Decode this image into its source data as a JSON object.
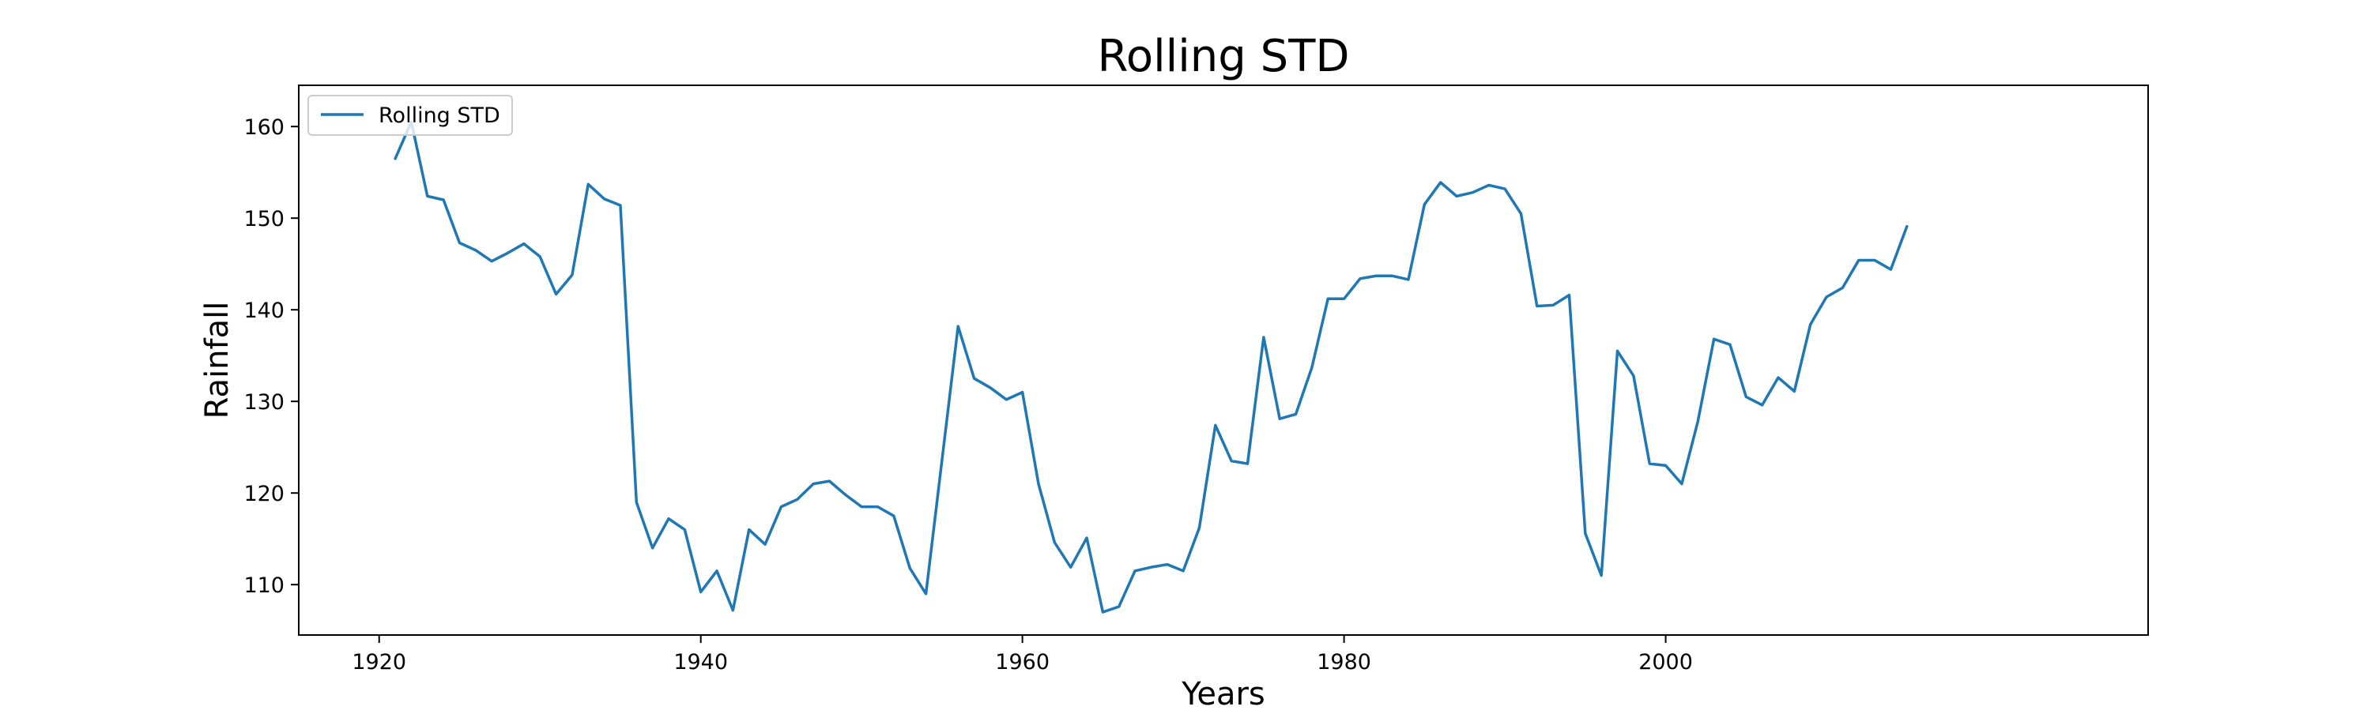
{
  "chart_data": {
    "type": "line",
    "title": "Rolling STD",
    "xlabel": "Years",
    "ylabel": "Rainfall",
    "xlim": [
      1915,
      2030
    ],
    "ylim": [
      104.5,
      164.5
    ],
    "xticks": [
      1920,
      1940,
      1960,
      1980,
      2000
    ],
    "yticks": [
      110,
      120,
      130,
      140,
      150,
      160
    ],
    "grid": false,
    "legend_position": "top-left",
    "series": [
      {
        "name": "Rolling STD",
        "color": "#1f77b4",
        "x": [
          1921,
          1922,
          1923,
          1924,
          1925,
          1926,
          1927,
          1928,
          1929,
          1930,
          1931,
          1932,
          1933,
          1934,
          1935,
          1936,
          1937,
          1938,
          1939,
          1940,
          1941,
          1942,
          1943,
          1944,
          1945,
          1946,
          1947,
          1948,
          1949,
          1950,
          1951,
          1952,
          1953,
          1954,
          1955,
          1956,
          1957,
          1958,
          1959,
          1960,
          1961,
          1962,
          1963,
          1964,
          1965,
          1966,
          1967,
          1968,
          1969,
          1970,
          1971,
          1972,
          1973,
          1974,
          1975,
          1976,
          1977,
          1978,
          1979,
          1980,
          1981,
          1982,
          1983,
          1984,
          1985,
          1986,
          1987,
          1988,
          1989,
          1990,
          1991,
          1992,
          1993,
          1994,
          1995,
          1996,
          1997,
          1998,
          1999,
          2000,
          2001,
          2002,
          2003,
          2004,
          2005,
          2006,
          2007,
          2008,
          2009,
          2010,
          2011,
          2012,
          2013,
          2014,
          2015
        ],
        "values": [
          156.5,
          160.5,
          152.4,
          152.0,
          147.3,
          146.5,
          145.3,
          146.2,
          147.2,
          145.8,
          141.7,
          143.8,
          153.7,
          152.1,
          151.4,
          119.0,
          114.0,
          117.2,
          116.0,
          109.2,
          111.5,
          107.2,
          116.0,
          114.4,
          118.5,
          119.3,
          121.0,
          121.3,
          119.8,
          118.5,
          118.5,
          117.5,
          111.8,
          109.0,
          123.6,
          138.2,
          132.5,
          131.5,
          130.2,
          131.0,
          121.0,
          114.6,
          111.9,
          115.1,
          107.0,
          107.6,
          111.5,
          111.9,
          112.2,
          111.5,
          116.2,
          127.4,
          123.5,
          123.2,
          137.0,
          128.1,
          128.6,
          133.7,
          141.2,
          141.2,
          143.4,
          143.7,
          143.7,
          143.3,
          151.5,
          153.9,
          152.4,
          152.8,
          153.6,
          153.2,
          150.5,
          140.4,
          140.5,
          141.6,
          115.6,
          111.0,
          135.5,
          132.8,
          123.2,
          123.0,
          121.0,
          127.8,
          136.8,
          136.2,
          130.5,
          129.6,
          132.6,
          131.1,
          138.4,
          141.4,
          142.4,
          145.4,
          145.4,
          144.4,
          149.1
        ]
      }
    ]
  }
}
